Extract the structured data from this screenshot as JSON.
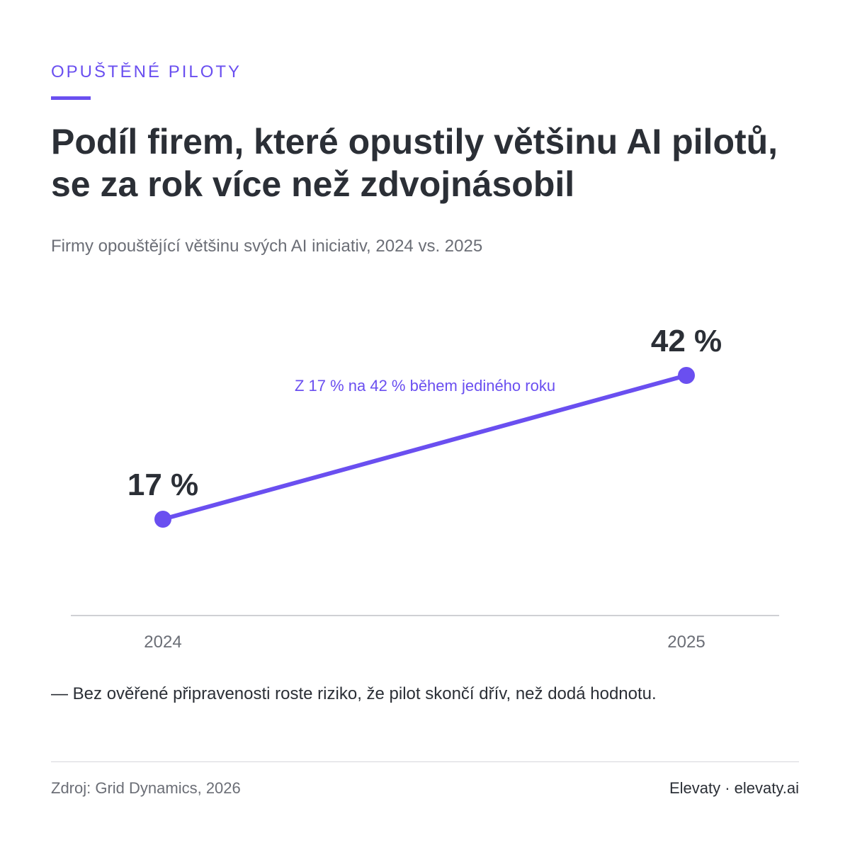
{
  "header": {
    "eyebrow": "OPUŠTĚNÉ PILOTY",
    "title": "Podíl firem, které opustily většinu AI pilotů, se za rok více než zdvojnásobil",
    "subtitle": "Firmy opouštějící většinu svých AI iniciativ, 2024 vs. 2025"
  },
  "chart_data": {
    "type": "line",
    "x": [
      "2024",
      "2025"
    ],
    "series": [
      {
        "values": [
          17,
          42
        ]
      }
    ],
    "data_labels": [
      "17 %",
      "42 %"
    ],
    "annotation": "Z 17 % na 42 % během jediného roku",
    "ylim": [
      0,
      50
    ],
    "grid": false,
    "legend": "none",
    "colors": {
      "line": "#6a4ff0",
      "axis": "#cfd0d4",
      "label": "#2b2f36",
      "tick": "#6b6e76"
    }
  },
  "note": "— Bez ověřené připravenosti roste riziko, že pilot skončí dřív, než dodá hodnotu.",
  "footer": {
    "source": "Zdroj: Grid Dynamics, 2026",
    "brand": "Elevaty · elevaty.ai"
  }
}
